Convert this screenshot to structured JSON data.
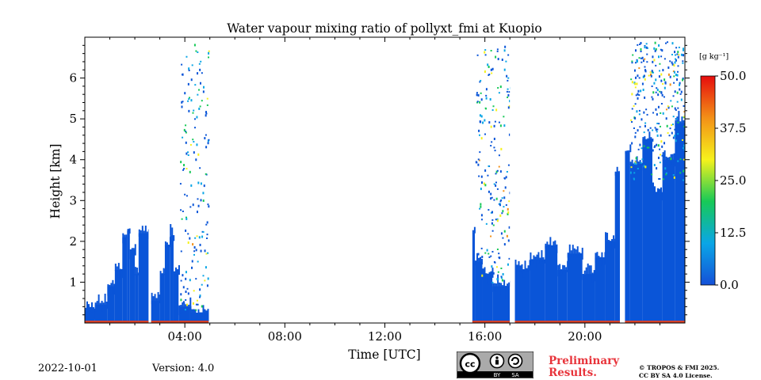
{
  "chart_data": {
    "type": "heatmap",
    "title": "Water vapour mixing ratio of pollyxt_fmi at Kuopio",
    "xlabel": "Time [UTC]",
    "ylabel": "Height [km]",
    "xlim": [
      0,
      24
    ],
    "ylim": [
      0,
      7
    ],
    "x_ticks": [
      {
        "v": 4,
        "label": "04:00"
      },
      {
        "v": 8,
        "label": "08:00"
      },
      {
        "v": 12,
        "label": "12:00"
      },
      {
        "v": 16,
        "label": "16:00"
      },
      {
        "v": 20,
        "label": "20:00"
      }
    ],
    "y_ticks": [
      {
        "v": 1,
        "label": "1"
      },
      {
        "v": 2,
        "label": "2"
      },
      {
        "v": 3,
        "label": "3"
      },
      {
        "v": 4,
        "label": "4"
      },
      {
        "v": 5,
        "label": "5"
      },
      {
        "v": 6,
        "label": "6"
      }
    ],
    "colorbar": {
      "unit": "[g kg⁻¹]",
      "range": [
        0,
        50
      ],
      "ticks": [
        {
          "v": 0,
          "label": "0.0"
        },
        {
          "v": 12.5,
          "label": "12.5"
        },
        {
          "v": 25,
          "label": "25.0"
        },
        {
          "v": 37.5,
          "label": "37.5"
        },
        {
          "v": 50,
          "label": "50.0"
        }
      ],
      "colormap": [
        "#1450d8",
        "#0aa6e6",
        "#17c957",
        "#f6f21c",
        "#f39017",
        "#e60d0d"
      ]
    },
    "dominant_value_color": "#0a55d8",
    "profiles": [
      {
        "x0": 0.0,
        "x1": 0.4,
        "top": 0.3
      },
      {
        "x0": 0.4,
        "x1": 0.9,
        "top": 0.45
      },
      {
        "x0": 0.9,
        "x1": 1.2,
        "top": 0.9
      },
      {
        "x0": 1.2,
        "x1": 1.5,
        "top": 1.3
      },
      {
        "x0": 1.5,
        "x1": 1.7,
        "top": 2.1
      },
      {
        "x0": 1.7,
        "x1": 1.8,
        "top": 2.3
      },
      {
        "x0": 1.8,
        "x1": 2.0,
        "top": 1.8
      },
      {
        "x0": 2.0,
        "x1": 2.15,
        "top": 1.2
      },
      {
        "x0": 2.15,
        "x1": 2.55,
        "top": 2.2
      },
      {
        "x0": 2.65,
        "x1": 3.0,
        "top": 0.55
      },
      {
        "x0": 3.0,
        "x1": 3.2,
        "top": 1.2
      },
      {
        "x0": 3.2,
        "x1": 3.4,
        "top": 1.9
      },
      {
        "x0": 3.4,
        "x1": 3.55,
        "top": 2.15
      },
      {
        "x0": 3.55,
        "x1": 3.75,
        "top": 1.2
      },
      {
        "x0": 3.75,
        "x1": 4.2,
        "top": 0.4
      },
      {
        "x0": 4.2,
        "x1": 4.95,
        "top": 0.25
      },
      {
        "x0": 15.5,
        "x1": 15.6,
        "top": 2.2
      },
      {
        "x0": 15.6,
        "x1": 15.9,
        "top": 1.5
      },
      {
        "x0": 15.9,
        "x1": 16.3,
        "top": 1.2
      },
      {
        "x0": 16.3,
        "x1": 17.0,
        "top": 0.9
      },
      {
        "x0": 17.2,
        "x1": 17.8,
        "top": 1.3
      },
      {
        "x0": 17.8,
        "x1": 18.4,
        "top": 1.55
      },
      {
        "x0": 18.4,
        "x1": 18.9,
        "top": 1.9
      },
      {
        "x0": 18.9,
        "x1": 19.3,
        "top": 1.3
      },
      {
        "x0": 19.3,
        "x1": 19.9,
        "top": 1.7
      },
      {
        "x0": 19.9,
        "x1": 20.4,
        "top": 1.2
      },
      {
        "x0": 20.4,
        "x1": 20.8,
        "top": 1.6
      },
      {
        "x0": 20.8,
        "x1": 21.2,
        "top": 2.0
      },
      {
        "x0": 21.2,
        "x1": 21.4,
        "top": 3.7
      },
      {
        "x0": 21.6,
        "x1": 21.8,
        "top": 4.2
      },
      {
        "x0": 21.8,
        "x1": 22.3,
        "top": 3.9
      },
      {
        "x0": 22.3,
        "x1": 22.7,
        "top": 4.5
      },
      {
        "x0": 22.7,
        "x1": 23.1,
        "top": 3.2
      },
      {
        "x0": 23.1,
        "x1": 23.6,
        "top": 4.0
      },
      {
        "x0": 23.6,
        "x1": 24.0,
        "top": 4.9
      }
    ],
    "gaps": [
      [
        2.55,
        2.65
      ],
      [
        17.0,
        17.2
      ],
      [
        21.4,
        21.6
      ]
    ],
    "speckle_regions": [
      {
        "x0": 3.8,
        "x1": 4.95,
        "y0": 0.3,
        "y1": 6.9
      },
      {
        "x0": 15.6,
        "x1": 17.0,
        "y0": 1.0,
        "y1": 6.9
      },
      {
        "x0": 21.8,
        "x1": 24.0,
        "y0": 3.5,
        "y1": 6.9
      }
    ]
  },
  "footer": {
    "date": "2022-10-01",
    "version": "Version: 4.0",
    "preliminary_line1": "Preliminary",
    "preliminary_line2": "Results.",
    "copyright_line1": "© TROPOS & FMI 2025.",
    "copyright_line2": "CC BY SA 4.0 License.",
    "license_badge": {
      "by": "BY",
      "sa": "SA"
    }
  }
}
